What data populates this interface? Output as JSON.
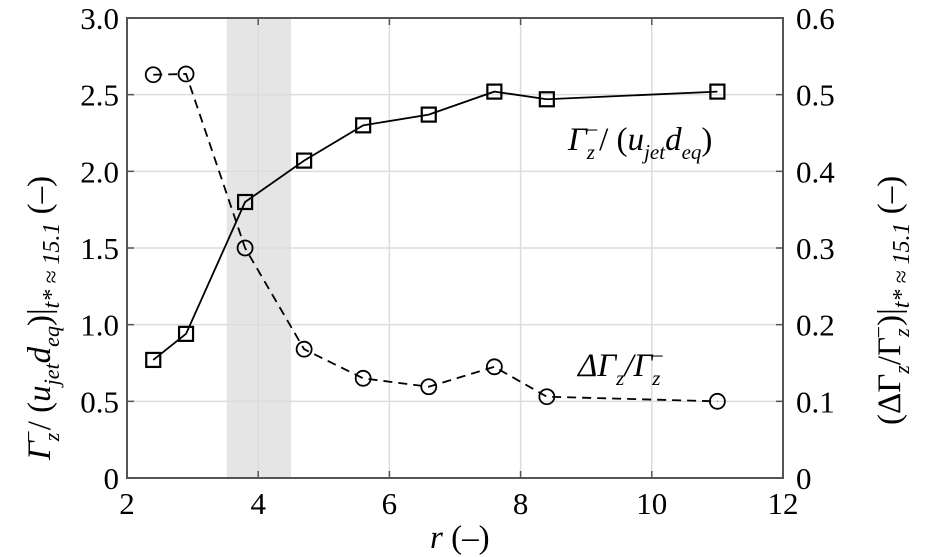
{
  "chart_data": {
    "type": "line",
    "title": "",
    "xlabel": "r (–)",
    "ylabel_left": "Γz⁻/(u_jet d_eq)|t*≈15.1 (–)",
    "ylabel_right": "(ΔΓz/Γz⁻)|t*≈15.1 (–)",
    "xlim": [
      2,
      12
    ],
    "ylim_left": [
      0,
      3.0
    ],
    "ylim_right": [
      0,
      0.6
    ],
    "x_ticks": [
      "2",
      "4",
      "6",
      "8",
      "10",
      "12"
    ],
    "y_ticks_left": [
      "0",
      "0.5",
      "1.0",
      "1.5",
      "2.0",
      "2.5",
      "3.0"
    ],
    "y_ticks_right": [
      "0",
      "0.1",
      "0.2",
      "0.3",
      "0.4",
      "0.5",
      "0.6"
    ],
    "grid": true,
    "shaded_band": {
      "x_from": 3.52,
      "x_to": 4.5,
      "color": "#e5e5e5"
    },
    "x": [
      2.4,
      2.9,
      3.8,
      4.7,
      5.6,
      6.6,
      7.6,
      8.4,
      11.0
    ],
    "series": [
      {
        "name": "Γz⁻/(u_jet d_eq)",
        "axis": "left",
        "marker": "square",
        "line": "solid",
        "values": [
          0.77,
          0.94,
          1.8,
          2.07,
          2.3,
          2.37,
          2.52,
          2.47,
          2.52
        ]
      },
      {
        "name": "ΔΓz/Γz⁻",
        "axis": "right",
        "marker": "circle",
        "line": "dashed",
        "values": [
          0.526,
          0.527,
          0.3,
          0.168,
          0.13,
          0.119,
          0.145,
          0.106,
          0.1
        ]
      }
    ],
    "annotations": [
      {
        "text": "Γz⁻/ (u_jet d_eq)",
        "near_series": 0
      },
      {
        "text": "ΔΓz/Γz⁻",
        "near_series": 1
      }
    ]
  },
  "labels": {
    "x_axis": {
      "var": "r",
      "unit": " (–)"
    },
    "left_axis": {
      "gamma": "Γ",
      "sub_z": "z",
      "sup_minus": "−",
      "slash": "/ (",
      "u": "u",
      "sub_jet": "jet",
      "d": "d",
      "sub_eq": "eq",
      "close": ")|",
      "sub_t": "t* ≈ 15.1",
      "unit": " (–)"
    },
    "right_axis": {
      "open": "(ΔΓ",
      "sub_z": "z",
      "slash": "/Γ",
      "sub_z2": "z",
      "sup_minus": "−",
      "close": ")|",
      "sub_t": "t* ≈ 15.1",
      "unit": " (–)"
    },
    "anno_top": {
      "gamma": "Γ",
      "sub_z": "z",
      "sup_minus": "−",
      "slash": "/ (",
      "u": "u",
      "sub_jet": "jet",
      "d": "d",
      "sub_eq": "eq",
      "close": ")"
    },
    "anno_bottom": {
      "delta": "ΔΓ",
      "sub_z": "z",
      "slash": "/Γ",
      "sub_z2": "z",
      "sup_minus": "−"
    }
  },
  "colors": {
    "axis": "#555555",
    "grid": "#dcdcdc",
    "line": "#000000",
    "band": "#e5e5e5"
  }
}
